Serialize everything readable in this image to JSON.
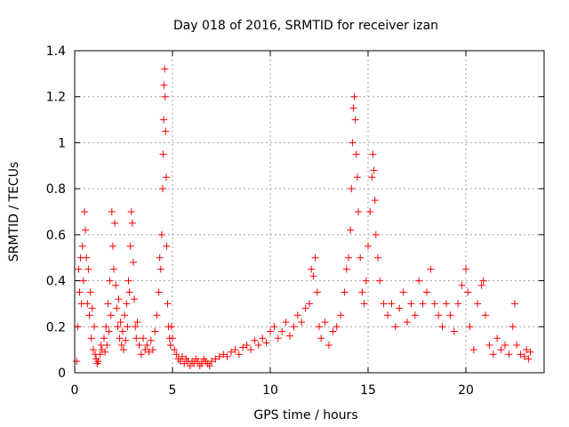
{
  "chart_data": {
    "type": "scatter",
    "title": "Day 018 of 2016, SRMTID for receiver izan",
    "xlabel": "GPS time / hours",
    "ylabel": "SRMTID / TECUs",
    "xlim": [
      0,
      24
    ],
    "ylim": [
      0,
      1.4
    ],
    "xticks": [
      0,
      5,
      10,
      15,
      20
    ],
    "yticks": [
      0,
      0.2,
      0.4,
      0.6,
      0.8,
      1,
      1.2,
      1.4
    ],
    "grid": true,
    "marker": "+",
    "color": "#ff0000",
    "series": [
      {
        "name": "SRMTID",
        "points": [
          [
            0.1,
            0.05
          ],
          [
            0.15,
            0.2
          ],
          [
            0.2,
            0.45
          ],
          [
            0.25,
            0.35
          ],
          [
            0.3,
            0.5
          ],
          [
            0.35,
            0.3
          ],
          [
            0.4,
            0.55
          ],
          [
            0.45,
            0.4
          ],
          [
            0.5,
            0.7
          ],
          [
            0.55,
            0.62
          ],
          [
            0.6,
            0.5
          ],
          [
            0.65,
            0.3
          ],
          [
            0.7,
            0.45
          ],
          [
            0.75,
            0.25
          ],
          [
            0.8,
            0.35
          ],
          [
            0.85,
            0.15
          ],
          [
            0.9,
            0.28
          ],
          [
            0.95,
            0.1
          ],
          [
            1.0,
            0.2
          ],
          [
            1.05,
            0.08
          ],
          [
            1.1,
            0.06
          ],
          [
            1.15,
            0.04
          ],
          [
            1.2,
            0.05
          ],
          [
            1.3,
            0.08
          ],
          [
            1.35,
            0.12
          ],
          [
            1.4,
            0.1
          ],
          [
            1.5,
            0.15
          ],
          [
            1.55,
            0.09
          ],
          [
            1.6,
            0.2
          ],
          [
            1.65,
            0.12
          ],
          [
            1.7,
            0.3
          ],
          [
            1.75,
            0.18
          ],
          [
            1.8,
            0.4
          ],
          [
            1.85,
            0.25
          ],
          [
            1.9,
            0.7
          ],
          [
            1.95,
            0.55
          ],
          [
            2.0,
            0.45
          ],
          [
            2.05,
            0.65
          ],
          [
            2.1,
            0.38
          ],
          [
            2.15,
            0.28
          ],
          [
            2.2,
            0.2
          ],
          [
            2.25,
            0.32
          ],
          [
            2.3,
            0.15
          ],
          [
            2.35,
            0.22
          ],
          [
            2.4,
            0.12
          ],
          [
            2.45,
            0.18
          ],
          [
            2.5,
            0.1
          ],
          [
            2.55,
            0.25
          ],
          [
            2.6,
            0.14
          ],
          [
            2.65,
            0.3
          ],
          [
            2.7,
            0.2
          ],
          [
            2.75,
            0.4
          ],
          [
            2.8,
            0.35
          ],
          [
            2.85,
            0.55
          ],
          [
            2.9,
            0.7
          ],
          [
            2.95,
            0.65
          ],
          [
            3.0,
            0.48
          ],
          [
            3.05,
            0.32
          ],
          [
            3.1,
            0.2
          ],
          [
            3.15,
            0.15
          ],
          [
            3.2,
            0.22
          ],
          [
            3.3,
            0.12
          ],
          [
            3.4,
            0.08
          ],
          [
            3.5,
            0.15
          ],
          [
            3.6,
            0.1
          ],
          [
            3.7,
            0.12
          ],
          [
            3.8,
            0.09
          ],
          [
            3.9,
            0.14
          ],
          [
            4.0,
            0.1
          ],
          [
            4.1,
            0.18
          ],
          [
            4.2,
            0.25
          ],
          [
            4.3,
            0.35
          ],
          [
            4.35,
            0.5
          ],
          [
            4.4,
            0.45
          ],
          [
            4.45,
            0.6
          ],
          [
            4.5,
            0.8
          ],
          [
            4.52,
            0.95
          ],
          [
            4.55,
            1.1
          ],
          [
            4.57,
            1.25
          ],
          [
            4.6,
            1.32
          ],
          [
            4.62,
            1.2
          ],
          [
            4.65,
            1.05
          ],
          [
            4.68,
            0.85
          ],
          [
            4.7,
            0.55
          ],
          [
            4.75,
            0.3
          ],
          [
            4.8,
            0.2
          ],
          [
            4.85,
            0.15
          ],
          [
            4.9,
            0.12
          ],
          [
            4.95,
            0.2
          ],
          [
            5.0,
            0.15
          ],
          [
            5.1,
            0.1
          ],
          [
            5.2,
            0.08
          ],
          [
            5.3,
            0.06
          ],
          [
            5.4,
            0.05
          ],
          [
            5.5,
            0.07
          ],
          [
            5.6,
            0.04
          ],
          [
            5.7,
            0.06
          ],
          [
            5.8,
            0.05
          ],
          [
            5.9,
            0.03
          ],
          [
            6.0,
            0.05
          ],
          [
            6.1,
            0.04
          ],
          [
            6.2,
            0.06
          ],
          [
            6.3,
            0.05
          ],
          [
            6.4,
            0.03
          ],
          [
            6.5,
            0.04
          ],
          [
            6.6,
            0.06
          ],
          [
            6.7,
            0.05
          ],
          [
            6.8,
            0.04
          ],
          [
            6.9,
            0.03
          ],
          [
            7.0,
            0.05
          ],
          [
            7.2,
            0.06
          ],
          [
            7.4,
            0.07
          ],
          [
            7.6,
            0.08
          ],
          [
            7.8,
            0.07
          ],
          [
            8.0,
            0.09
          ],
          [
            8.2,
            0.1
          ],
          [
            8.4,
            0.08
          ],
          [
            8.6,
            0.11
          ],
          [
            8.8,
            0.12
          ],
          [
            9.0,
            0.1
          ],
          [
            9.2,
            0.14
          ],
          [
            9.4,
            0.12
          ],
          [
            9.6,
            0.15
          ],
          [
            9.8,
            0.13
          ],
          [
            10.0,
            0.18
          ],
          [
            10.2,
            0.2
          ],
          [
            10.4,
            0.15
          ],
          [
            10.6,
            0.18
          ],
          [
            10.8,
            0.22
          ],
          [
            11.0,
            0.16
          ],
          [
            11.2,
            0.2
          ],
          [
            11.4,
            0.25
          ],
          [
            11.6,
            0.22
          ],
          [
            11.8,
            0.28
          ],
          [
            12.0,
            0.3
          ],
          [
            12.1,
            0.45
          ],
          [
            12.2,
            0.42
          ],
          [
            12.3,
            0.5
          ],
          [
            12.4,
            0.35
          ],
          [
            12.5,
            0.2
          ],
          [
            12.6,
            0.15
          ],
          [
            12.8,
            0.22
          ],
          [
            13.0,
            0.12
          ],
          [
            13.2,
            0.18
          ],
          [
            13.4,
            0.2
          ],
          [
            13.6,
            0.25
          ],
          [
            13.8,
            0.35
          ],
          [
            13.9,
            0.45
          ],
          [
            14.0,
            0.5
          ],
          [
            14.1,
            0.62
          ],
          [
            14.15,
            0.8
          ],
          [
            14.2,
            1.0
          ],
          [
            14.25,
            1.15
          ],
          [
            14.3,
            1.2
          ],
          [
            14.35,
            1.1
          ],
          [
            14.4,
            0.95
          ],
          [
            14.45,
            0.85
          ],
          [
            14.5,
            0.7
          ],
          [
            14.6,
            0.5
          ],
          [
            14.7,
            0.35
          ],
          [
            14.8,
            0.3
          ],
          [
            14.9,
            0.4
          ],
          [
            15.0,
            0.55
          ],
          [
            15.1,
            0.7
          ],
          [
            15.2,
            0.85
          ],
          [
            15.25,
            0.95
          ],
          [
            15.3,
            0.88
          ],
          [
            15.35,
            0.75
          ],
          [
            15.4,
            0.6
          ],
          [
            15.5,
            0.5
          ],
          [
            15.6,
            0.4
          ],
          [
            15.8,
            0.3
          ],
          [
            16.0,
            0.25
          ],
          [
            16.2,
            0.3
          ],
          [
            16.4,
            0.2
          ],
          [
            16.6,
            0.28
          ],
          [
            16.8,
            0.35
          ],
          [
            17.0,
            0.22
          ],
          [
            17.2,
            0.3
          ],
          [
            17.4,
            0.25
          ],
          [
            17.6,
            0.4
          ],
          [
            17.8,
            0.3
          ],
          [
            18.0,
            0.35
          ],
          [
            18.2,
            0.45
          ],
          [
            18.4,
            0.3
          ],
          [
            18.6,
            0.25
          ],
          [
            18.8,
            0.2
          ],
          [
            19.0,
            0.3
          ],
          [
            19.2,
            0.25
          ],
          [
            19.4,
            0.18
          ],
          [
            19.6,
            0.3
          ],
          [
            19.8,
            0.38
          ],
          [
            20.0,
            0.45
          ],
          [
            20.1,
            0.35
          ],
          [
            20.2,
            0.2
          ],
          [
            20.4,
            0.1
          ],
          [
            20.6,
            0.3
          ],
          [
            20.8,
            0.38
          ],
          [
            20.9,
            0.4
          ],
          [
            21.0,
            0.25
          ],
          [
            21.2,
            0.12
          ],
          [
            21.4,
            0.08
          ],
          [
            21.6,
            0.15
          ],
          [
            21.8,
            0.1
          ],
          [
            22.0,
            0.12
          ],
          [
            22.2,
            0.08
          ],
          [
            22.4,
            0.2
          ],
          [
            22.5,
            0.3
          ],
          [
            22.6,
            0.12
          ],
          [
            22.8,
            0.08
          ],
          [
            23.0,
            0.07
          ],
          [
            23.1,
            0.1
          ],
          [
            23.2,
            0.06
          ],
          [
            23.3,
            0.09
          ]
        ]
      }
    ]
  }
}
